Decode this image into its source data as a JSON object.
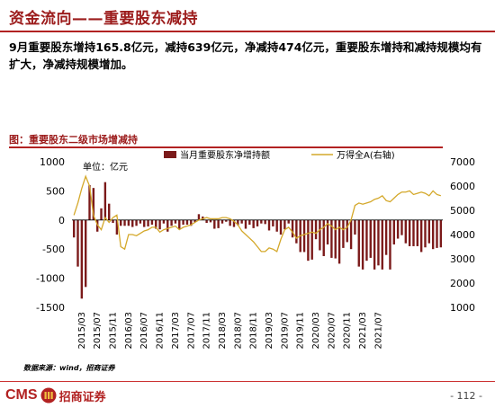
{
  "header": {
    "title": "资金流向——重要股东减持",
    "summary": "9月重要股东增持165.8亿元，减持639亿元，净减持474亿元，重要股东增持和减持规模均有扩大，净减持规模增加。"
  },
  "chart_data": {
    "type": "bar+line",
    "title": "图：重要股东二级市场增减持",
    "unit_label": "单位：亿元",
    "legend": {
      "bar": "当月重要股东净增持额",
      "line": "万得全A(右轴)",
      "placement": "top"
    },
    "left_axis": {
      "ylim": [
        -1500,
        1000
      ],
      "ticks": [
        1000,
        500,
        0,
        -500,
        -1000,
        -1500
      ]
    },
    "right_axis": {
      "ylim": [
        1000,
        7000
      ],
      "ticks": [
        7000,
        6000,
        5000,
        4000,
        3000,
        2000,
        1000
      ]
    },
    "x_ticks": [
      "2015/03",
      "2015/07",
      "2015/11",
      "2016/03",
      "2016/07",
      "2016/11",
      "2017/03",
      "2017/07",
      "2017/11",
      "2018/03",
      "2018/07",
      "2018/11",
      "2019/03",
      "2019/07",
      "2019/11",
      "2020/03",
      "2020/07",
      "2020/11",
      "2021/03",
      "2021/07"
    ],
    "x_start": "2015/01",
    "bar_values": [
      -300,
      -800,
      -1350,
      -1150,
      600,
      550,
      -200,
      200,
      650,
      280,
      -50,
      -250,
      -100,
      -100,
      -100,
      -120,
      -100,
      -60,
      -120,
      -110,
      -80,
      -150,
      -160,
      -60,
      -200,
      -100,
      -60,
      -150,
      -80,
      -80,
      -100,
      -40,
      100,
      60,
      -50,
      -40,
      -150,
      -140,
      -60,
      -30,
      -100,
      -120,
      -90,
      -60,
      -150,
      -80,
      -140,
      -110,
      -60,
      -70,
      -180,
      -110,
      -200,
      -250,
      -160,
      -60,
      -300,
      -400,
      -550,
      -550,
      -700,
      -680,
      -330,
      -520,
      -620,
      -420,
      -650,
      -660,
      -750,
      -480,
      -380,
      -500,
      -250,
      -800,
      -850,
      -700,
      -650,
      -850,
      -780,
      -850,
      -600,
      -850,
      -420,
      -320,
      -260,
      -400,
      -450,
      -450,
      -450,
      -550,
      -470,
      -400,
      -500,
      -480,
      -470
    ],
    "line_values": [
      4800,
      5300,
      5900,
      6400,
      6000,
      4800,
      4400,
      4200,
      4700,
      4500,
      4700,
      4800,
      3500,
      3400,
      4000,
      4000,
      3950,
      4050,
      4150,
      4200,
      4300,
      4300,
      4100,
      4200,
      4250,
      4300,
      4350,
      4200,
      4300,
      4350,
      4400,
      4500,
      4600,
      4650,
      4700,
      4650,
      4650,
      4650,
      4700,
      4700,
      4650,
      4550,
      4400,
      4150,
      4000,
      3850,
      3700,
      3500,
      3300,
      3300,
      3450,
      3400,
      3300,
      3800,
      4200,
      4300,
      4100,
      3850,
      3950,
      4000,
      4050,
      4100,
      4050,
      4200,
      4300,
      4450,
      4350,
      4200,
      4300,
      4200,
      4300,
      4600,
      5200,
      5300,
      5250,
      5300,
      5350,
      5450,
      5500,
      5600,
      5400,
      5350,
      5500,
      5650,
      5750,
      5750,
      5800,
      5650,
      5700,
      5750,
      5700,
      5600,
      5800,
      5650,
      5600
    ]
  },
  "footer": {
    "source": "数据来源：wind，招商证券",
    "logo_latin": "CMS",
    "logo_cn": "招商证券",
    "page": "- 112 -"
  },
  "colors": {
    "title_red": "#9c1c1c",
    "bar": "#7b1a1a",
    "line": "#d4a82a"
  }
}
